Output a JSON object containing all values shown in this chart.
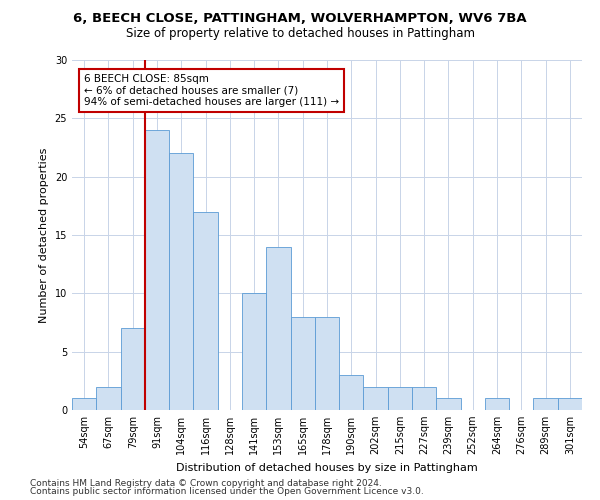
{
  "title1": "6, BEECH CLOSE, PATTINGHAM, WOLVERHAMPTON, WV6 7BA",
  "title2": "Size of property relative to detached houses in Pattingham",
  "xlabel": "Distribution of detached houses by size in Pattingham",
  "ylabel": "Number of detached properties",
  "categories": [
    "54sqm",
    "67sqm",
    "79sqm",
    "91sqm",
    "104sqm",
    "116sqm",
    "128sqm",
    "141sqm",
    "153sqm",
    "165sqm",
    "178sqm",
    "190sqm",
    "202sqm",
    "215sqm",
    "227sqm",
    "239sqm",
    "252sqm",
    "264sqm",
    "276sqm",
    "289sqm",
    "301sqm"
  ],
  "values": [
    1,
    2,
    7,
    24,
    22,
    17,
    0,
    10,
    14,
    8,
    8,
    3,
    2,
    2,
    2,
    1,
    0,
    1,
    0,
    1,
    1
  ],
  "bar_color": "#cfe0f2",
  "bar_edge_color": "#5b9bd5",
  "vline_color": "#c00000",
  "annotation_text": "6 BEECH CLOSE: 85sqm\n← 6% of detached houses are smaller (7)\n94% of semi-detached houses are larger (111) →",
  "annotation_box_color": "#ffffff",
  "annotation_box_edge": "#c00000",
  "ylim": [
    0,
    30
  ],
  "yticks": [
    0,
    5,
    10,
    15,
    20,
    25,
    30
  ],
  "footer1": "Contains HM Land Registry data © Crown copyright and database right 2024.",
  "footer2": "Contains public sector information licensed under the Open Government Licence v3.0.",
  "background_color": "#ffffff",
  "grid_color": "#c8d4e8",
  "title1_fontsize": 9.5,
  "title2_fontsize": 8.5,
  "xlabel_fontsize": 8,
  "ylabel_fontsize": 8,
  "tick_fontsize": 7,
  "footer_fontsize": 6.5,
  "annotation_fontsize": 7.5
}
